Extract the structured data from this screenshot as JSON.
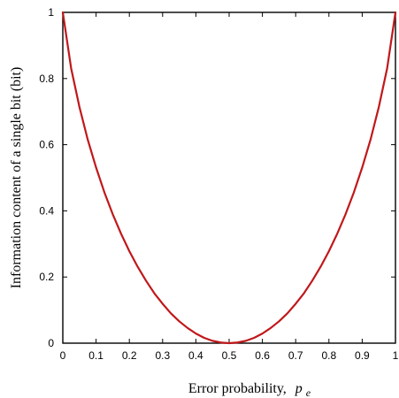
{
  "chart_data": {
    "type": "line",
    "title": "",
    "xlabel": "Error probability,",
    "xlabel_var": "p",
    "xlabel_sub": "e",
    "ylabel": "Information  content of a single bit  (bit)",
    "xlim": [
      0,
      1
    ],
    "ylim": [
      0,
      1
    ],
    "grid": false,
    "x_ticks": [
      0,
      0.1,
      0.2,
      0.3,
      0.4,
      0.5,
      0.6,
      0.7,
      0.8,
      0.9,
      1
    ],
    "x_tick_labels": [
      "0",
      "0.1",
      "0.2",
      "0.3",
      "0.4",
      "0.5",
      "0.6",
      "0.7",
      "0.8",
      "0.9",
      "1"
    ],
    "y_ticks": [
      0,
      0.2,
      0.4,
      0.6,
      0.8,
      1
    ],
    "y_tick_labels": [
      "0",
      "0.2",
      "0.4",
      "0.6",
      "0.8",
      "1"
    ],
    "series": [
      {
        "color": "#c0181b",
        "x": [
          0,
          0.025,
          0.05,
          0.075,
          0.1,
          0.125,
          0.15,
          0.175,
          0.2,
          0.225,
          0.25,
          0.275,
          0.3,
          0.325,
          0.35,
          0.375,
          0.4,
          0.425,
          0.45,
          0.475,
          0.5,
          0.525,
          0.55,
          0.575,
          0.6,
          0.625,
          0.65,
          0.675,
          0.7,
          0.725,
          0.75,
          0.775,
          0.8,
          0.825,
          0.85,
          0.875,
          0.9,
          0.925,
          0.95,
          0.975,
          1
        ],
        "y": [
          1,
          0.831,
          0.714,
          0.615,
          0.531,
          0.456,
          0.39,
          0.331,
          0.278,
          0.231,
          0.189,
          0.151,
          0.119,
          0.09,
          0.066,
          0.046,
          0.029,
          0.016,
          0.007,
          0.002,
          0,
          0.002,
          0.007,
          0.016,
          0.029,
          0.046,
          0.066,
          0.09,
          0.119,
          0.151,
          0.189,
          0.231,
          0.278,
          0.331,
          0.39,
          0.456,
          0.531,
          0.615,
          0.714,
          0.831,
          1
        ]
      }
    ]
  }
}
